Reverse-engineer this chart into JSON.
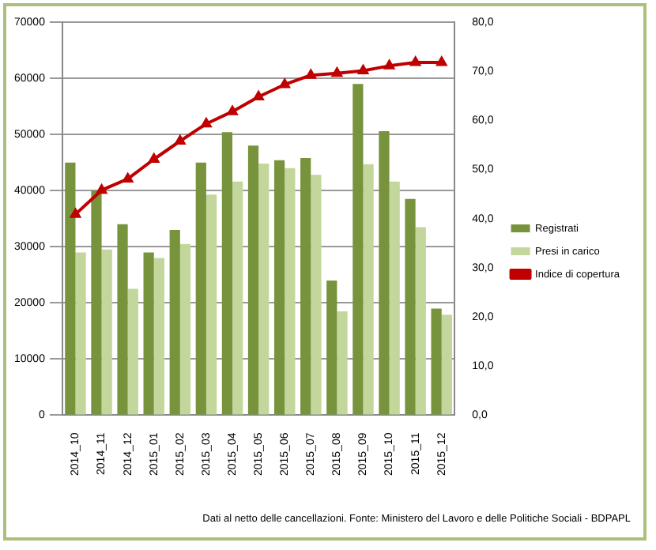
{
  "chart_data": {
    "type": "bar",
    "categories": [
      "2014_10",
      "2014_11",
      "2014_12",
      "2015_01",
      "2015_02",
      "2015_03",
      "2015_04",
      "2015_05",
      "2015_06",
      "2015_07",
      "2015_08",
      "2015_09",
      "2015_10",
      "2015_11",
      "2015_12"
    ],
    "series": [
      {
        "name": "Registrati",
        "color": "#77933c",
        "values": [
          45000,
          40000,
          34000,
          29000,
          33000,
          45000,
          50400,
          48000,
          45400,
          45800,
          24000,
          59000,
          50600,
          38500,
          19000
        ]
      },
      {
        "name": "Presi in carico",
        "color": "#c3d69b",
        "values": [
          29000,
          29500,
          22500,
          28000,
          30500,
          39300,
          41600,
          44800,
          44000,
          42800,
          18500,
          44700,
          41600,
          33500,
          17900
        ]
      },
      {
        "name": "Indice di copertura",
        "type": "line",
        "axis": "y2",
        "color": "#c00000",
        "marker": "triangle",
        "values": [
          40.9,
          45.8,
          48.1,
          52.1,
          55.8,
          59.3,
          61.8,
          64.8,
          67.3,
          69.2,
          69.6,
          70.1,
          71.1,
          71.8,
          71.8
        ]
      }
    ],
    "ylim": [
      0,
      70000
    ],
    "yticks": [
      0,
      10000,
      20000,
      30000,
      40000,
      50000,
      60000,
      70000
    ],
    "y2lim": [
      0,
      80
    ],
    "y2ticks": [
      {
        "value": 0,
        "label": "0,0"
      },
      {
        "value": 10,
        "label": "10,0"
      },
      {
        "value": 20,
        "label": "20,0"
      },
      {
        "value": 30,
        "label": "30,0"
      },
      {
        "value": 40,
        "label": "40,0"
      },
      {
        "value": 50,
        "label": "50,0"
      },
      {
        "value": 60,
        "label": "60,0"
      },
      {
        "value": 70,
        "label": "70,0"
      },
      {
        "value": 80,
        "label": "80,0"
      }
    ],
    "grid": "y",
    "legend": "right",
    "annotations": [
      "Dati al netto delle cancellazioni. Fonte: Ministero del Lavoro e delle Politiche Sociali - BDPAPL"
    ]
  }
}
